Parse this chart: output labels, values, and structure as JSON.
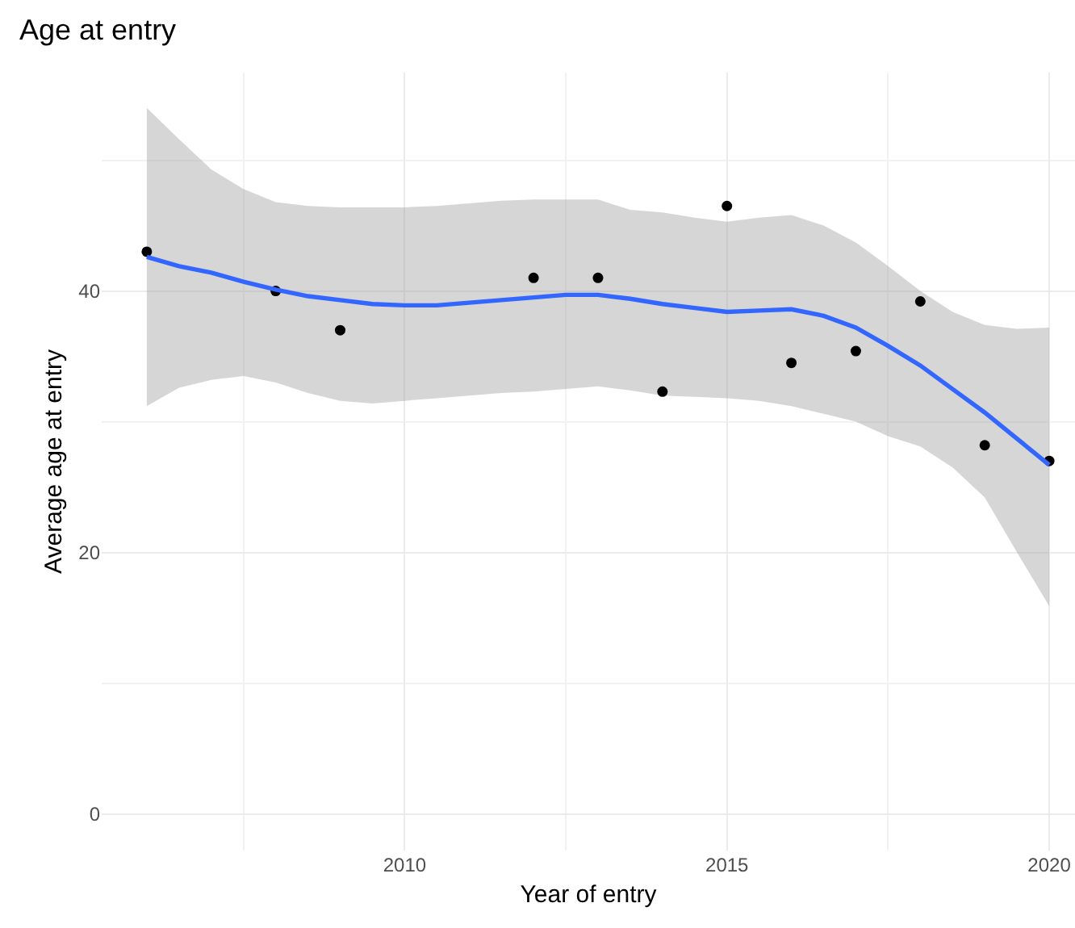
{
  "chart_data": {
    "type": "scatter",
    "title": "Age at entry",
    "xlabel": "Year of entry",
    "ylabel": "Average age at entry",
    "series": [
      {
        "color": "#000000",
        "marker": "circle",
        "x": [
          2006,
          2008,
          2009,
          2012,
          2013,
          2014,
          2015,
          2016,
          2017,
          2018,
          2019,
          2020
        ],
        "values": [
          43.0,
          40.0,
          37.0,
          41.0,
          41.0,
          32.3,
          46.5,
          34.5,
          35.4,
          39.2,
          28.2,
          27.0
        ]
      },
      {
        "type": "line",
        "color": "#3366ff",
        "marker": "none",
        "line_style": "solid",
        "x": [
          2006,
          2006.5,
          2007,
          2007.5,
          2008,
          2008.5,
          2009,
          2009.5,
          2010,
          2010.5,
          2011,
          2011.5,
          2012,
          2012.5,
          2013,
          2013.5,
          2014,
          2014.5,
          2015,
          2015.5,
          2016,
          2016.5,
          2017,
          2017.5,
          2018,
          2018.5,
          2019,
          2019.5,
          2020
        ],
        "values": [
          42.6,
          41.9,
          41.4,
          40.7,
          40.1,
          39.6,
          39.3,
          39.0,
          38.9,
          38.9,
          39.1,
          39.3,
          39.5,
          39.7,
          39.7,
          39.4,
          39.0,
          38.7,
          38.4,
          38.5,
          38.6,
          38.1,
          37.2,
          35.8,
          34.3,
          32.5,
          30.7,
          28.7,
          26.7
        ],
        "upper": [
          54.0,
          51.6,
          49.3,
          47.8,
          46.8,
          46.5,
          46.4,
          46.4,
          46.4,
          46.5,
          46.7,
          46.9,
          47.0,
          47.0,
          47.0,
          46.2,
          46.0,
          45.6,
          45.3,
          45.6,
          45.8,
          45.0,
          43.7,
          41.9,
          40.0,
          38.4,
          37.4,
          37.1,
          37.2
        ],
        "lower": [
          31.2,
          32.6,
          33.2,
          33.5,
          33.0,
          32.2,
          31.6,
          31.4,
          31.6,
          31.8,
          32.0,
          32.2,
          32.3,
          32.5,
          32.7,
          32.4,
          32.0,
          31.9,
          31.8,
          31.6,
          31.2,
          30.6,
          30.0,
          28.9,
          28.1,
          26.5,
          24.2,
          20.0,
          15.9
        ]
      }
    ],
    "xlim": [
      2005.3,
      2020.4
    ],
    "xticks": [
      {
        "value": 2007.5,
        "label": null
      },
      2010,
      {
        "value": 2012.5,
        "label": null
      },
      2015,
      {
        "value": 2017.5,
        "label": null
      },
      2020
    ],
    "ylim": [
      -2.8,
      56.7
    ],
    "yticks": [
      0,
      {
        "value": 10,
        "label": null
      },
      20,
      {
        "value": 30,
        "label": null
      },
      40,
      {
        "value": 50,
        "label": null
      }
    ],
    "grid": true
  }
}
